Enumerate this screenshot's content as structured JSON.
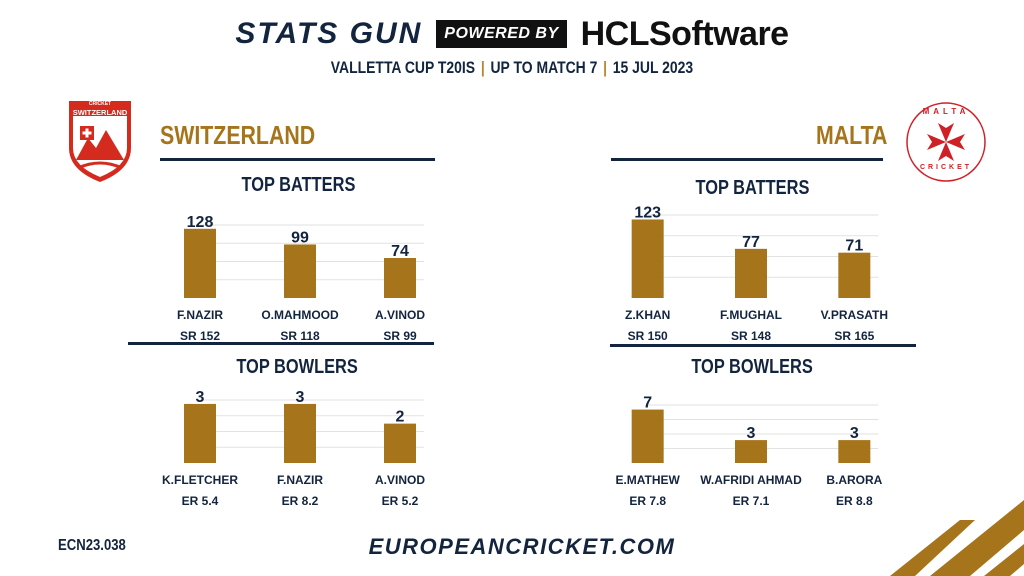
{
  "header": {
    "brand": "STATS GUN",
    "powered_by": "POWERED BY",
    "sponsor": "HCLSoftware",
    "competition": "VALLETTA CUP T20IS",
    "match_range": "UP TO MATCH 7",
    "date": "15 JUL 2023"
  },
  "teams": {
    "left": {
      "name": "SWITZERLAND",
      "logo_text_top": "CRICKET",
      "logo_text_main": "SWITZERLAND"
    },
    "right": {
      "name": "MALTA",
      "logo_text_top": "MALTA",
      "logo_text_bottom": "CRICKET"
    }
  },
  "sections": {
    "batters": "TOP BATTERS",
    "bowlers": "TOP BOWLERS"
  },
  "footer": {
    "code": "ECN23.038",
    "site": "EUROPEANCRICKET.COM"
  },
  "colors": {
    "bar": "#a6741a",
    "navy": "#13243f",
    "gold": "#a6741a",
    "swiss_red": "#d52b1e",
    "malta_red": "#cf2027"
  },
  "chart_data": [
    {
      "type": "bar",
      "title": "TOP BATTERS",
      "team": "SWITZERLAND",
      "categories": [
        "F.NAZIR",
        "O.MAHMOOD",
        "A.VINOD"
      ],
      "values": [
        128,
        99,
        74
      ],
      "sublabels": [
        "SR 152",
        "SR 118",
        "SR 99"
      ],
      "ylim": [
        0,
        135
      ],
      "grid": true
    },
    {
      "type": "bar",
      "title": "TOP BATTERS",
      "team": "MALTA",
      "categories": [
        "Z.KHAN",
        "F.MUGHAL",
        "V.PRASATH"
      ],
      "values": [
        123,
        77,
        71
      ],
      "sublabels": [
        "SR 150",
        "SR 148",
        "SR 165"
      ],
      "ylim": [
        0,
        130
      ],
      "grid": true
    },
    {
      "type": "bar",
      "title": "TOP BOWLERS",
      "team": "SWITZERLAND",
      "categories": [
        "K.FLETCHER",
        "F.NAZIR",
        "A.VINOD"
      ],
      "values": [
        3,
        3,
        2
      ],
      "sublabels": [
        "ER 5.4",
        "ER 8.2",
        "ER 5.2"
      ],
      "ylim": [
        0,
        3.2
      ],
      "grid": true
    },
    {
      "type": "bar",
      "title": "TOP BOWLERS",
      "team": "MALTA",
      "categories": [
        "E.MATHEW",
        "W.AFRIDI AHMAD",
        "B.ARORA"
      ],
      "values": [
        7,
        3,
        3
      ],
      "sublabels": [
        "ER 7.8",
        "ER 7.1",
        "ER 8.8"
      ],
      "ylim": [
        0,
        7.6
      ],
      "grid": true
    }
  ]
}
